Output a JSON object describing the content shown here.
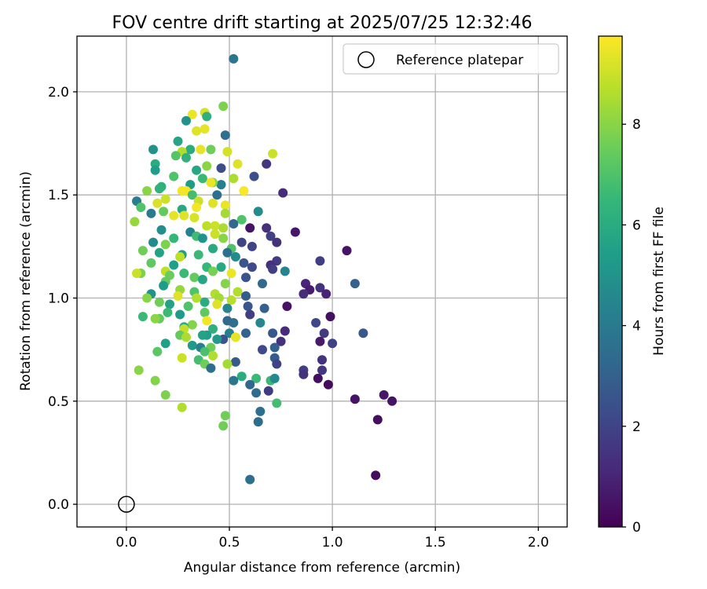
{
  "chart_data": {
    "type": "scatter",
    "title": "FOV centre drift starting at 2025/07/25 12:32:46",
    "xlabel": "Angular distance from reference (arcmin)",
    "ylabel": "Rotation from reference (arcmin)",
    "xlim": [
      -0.24,
      2.14
    ],
    "ylim": [
      -0.11,
      2.27
    ],
    "xticks": [
      0.0,
      0.5,
      1.0,
      1.5,
      2.0
    ],
    "xtick_labels": [
      "0.0",
      "0.5",
      "1.0",
      "1.5",
      "2.0"
    ],
    "yticks": [
      0.0,
      0.5,
      1.0,
      1.5,
      2.0
    ],
    "ytick_labels": [
      "0.0",
      "0.5",
      "1.0",
      "1.5",
      "2.0"
    ],
    "grid": true,
    "legend": {
      "placement": "top-right",
      "entries": [
        "Reference platepar"
      ]
    },
    "reference_point": {
      "x": 0.0,
      "y": 0.0
    },
    "colorbar": {
      "label": "Hours from first FF file",
      "colormap": "viridis",
      "range": [
        0,
        9.75
      ],
      "ticks": [
        0,
        2,
        4,
        6,
        8
      ],
      "tick_labels": [
        "0",
        "2",
        "4",
        "6",
        "8"
      ]
    },
    "colormap_stops": [
      "#440154",
      "#482878",
      "#3e4989",
      "#31688e",
      "#26828e",
      "#1f9e89",
      "#35b779",
      "#6ece58",
      "#b5de2b",
      "#fde725"
    ],
    "points": [
      [
        0.52,
        2.16,
        3.8
      ],
      [
        0.47,
        1.93,
        7.8
      ],
      [
        0.38,
        1.9,
        9.2
      ],
      [
        0.32,
        1.89,
        9.5
      ],
      [
        0.39,
        1.88,
        6.2
      ],
      [
        0.29,
        1.86,
        5.0
      ],
      [
        0.38,
        1.82,
        9.4
      ],
      [
        0.34,
        1.81,
        9.3
      ],
      [
        0.48,
        1.79,
        3.5
      ],
      [
        0.25,
        1.76,
        5.7
      ],
      [
        0.41,
        1.72,
        7.6
      ],
      [
        0.36,
        1.72,
        9.4
      ],
      [
        0.31,
        1.72,
        6.0
      ],
      [
        0.49,
        1.71,
        9.1
      ],
      [
        0.27,
        1.71,
        8.6
      ],
      [
        0.13,
        1.72,
        5.0
      ],
      [
        0.71,
        1.7,
        9.0
      ],
      [
        0.29,
        1.68,
        6.2
      ],
      [
        0.24,
        1.69,
        7.1
      ],
      [
        0.68,
        1.65,
        1.6
      ],
      [
        0.54,
        1.65,
        9.3
      ],
      [
        0.14,
        1.65,
        6.0
      ],
      [
        0.39,
        1.64,
        8.0
      ],
      [
        0.46,
        1.63,
        2.3
      ],
      [
        0.14,
        1.62,
        5.4
      ],
      [
        0.34,
        1.62,
        5.8
      ],
      [
        0.23,
        1.59,
        7.0
      ],
      [
        0.62,
        1.59,
        2.4
      ],
      [
        0.37,
        1.58,
        6.6
      ],
      [
        0.52,
        1.58,
        8.5
      ],
      [
        0.46,
        1.55,
        4.2
      ],
      [
        0.31,
        1.55,
        5.3
      ],
      [
        0.42,
        1.56,
        7.9
      ],
      [
        0.41,
        1.56,
        9.5
      ],
      [
        0.17,
        1.54,
        6.2
      ],
      [
        0.16,
        1.53,
        6.3
      ],
      [
        0.29,
        1.52,
        9.6
      ],
      [
        0.27,
        1.52,
        9.6
      ],
      [
        0.1,
        1.52,
        8.0
      ],
      [
        0.57,
        1.52,
        9.7
      ],
      [
        0.76,
        1.51,
        1.2
      ],
      [
        0.32,
        1.5,
        6.8
      ],
      [
        0.44,
        1.5,
        3.6
      ],
      [
        0.19,
        1.48,
        9.0
      ],
      [
        0.35,
        1.47,
        9.0
      ],
      [
        0.42,
        1.46,
        9.3
      ],
      [
        0.05,
        1.47,
        4.2
      ],
      [
        0.15,
        1.46,
        9.2
      ],
      [
        0.34,
        1.44,
        9.6
      ],
      [
        0.48,
        1.45,
        9.5
      ],
      [
        0.07,
        1.44,
        7.0
      ],
      [
        0.27,
        1.43,
        5.8
      ],
      [
        0.18,
        1.42,
        7.4
      ],
      [
        0.64,
        1.42,
        4.7
      ],
      [
        0.48,
        1.41,
        8.4
      ],
      [
        0.12,
        1.41,
        4.0
      ],
      [
        0.28,
        1.4,
        9.3
      ],
      [
        0.23,
        1.4,
        9.4
      ],
      [
        0.33,
        1.39,
        9.2
      ],
      [
        0.56,
        1.38,
        7.0
      ],
      [
        0.04,
        1.37,
        8.2
      ],
      [
        0.52,
        1.36,
        3.2
      ],
      [
        0.39,
        1.35,
        8.8
      ],
      [
        0.43,
        1.35,
        9.0
      ],
      [
        0.47,
        1.34,
        8.5
      ],
      [
        0.6,
        1.34,
        0.5
      ],
      [
        0.68,
        1.34,
        1.3
      ],
      [
        0.82,
        1.32,
        0.6
      ],
      [
        0.17,
        1.33,
        4.8
      ],
      [
        0.31,
        1.32,
        4.3
      ],
      [
        0.34,
        1.3,
        6.7
      ],
      [
        0.43,
        1.31,
        9.0
      ],
      [
        0.47,
        1.29,
        8.0
      ],
      [
        0.7,
        1.3,
        1.9
      ],
      [
        0.23,
        1.29,
        6.5
      ],
      [
        0.37,
        1.29,
        5.0
      ],
      [
        0.56,
        1.27,
        2.0
      ],
      [
        0.73,
        1.27,
        1.4
      ],
      [
        0.13,
        1.27,
        4.7
      ],
      [
        0.19,
        1.26,
        7.8
      ],
      [
        0.61,
        1.25,
        2.0
      ],
      [
        0.42,
        1.24,
        5.9
      ],
      [
        0.51,
        1.24,
        7.0
      ],
      [
        1.07,
        1.23,
        0.5
      ],
      [
        0.16,
        1.22,
        5.6
      ],
      [
        0.27,
        1.21,
        5.4
      ],
      [
        0.35,
        1.21,
        6.6
      ],
      [
        0.49,
        1.22,
        3.6
      ],
      [
        0.08,
        1.23,
        7.6
      ],
      [
        0.26,
        1.2,
        8.8
      ],
      [
        0.53,
        1.2,
        4.7
      ],
      [
        0.57,
        1.17,
        2.6
      ],
      [
        0.73,
        1.18,
        1.7
      ],
      [
        0.94,
        1.18,
        1.8
      ],
      [
        0.7,
        1.16,
        1.3
      ],
      [
        0.12,
        1.17,
        7.3
      ],
      [
        0.23,
        1.16,
        5.5
      ],
      [
        0.39,
        1.15,
        6.5
      ],
      [
        0.61,
        1.15,
        2.2
      ],
      [
        0.46,
        1.15,
        5.9
      ],
      [
        0.77,
        1.13,
        4.4
      ],
      [
        0.71,
        1.14,
        1.8
      ],
      [
        0.19,
        1.13,
        8.8
      ],
      [
        0.28,
        1.12,
        6.6
      ],
      [
        0.42,
        1.13,
        7.7
      ],
      [
        0.51,
        1.12,
        9.5
      ],
      [
        0.07,
        1.12,
        7.8
      ],
      [
        0.05,
        1.12,
        9.0
      ],
      [
        0.21,
        1.11,
        7.5
      ],
      [
        0.33,
        1.1,
        7.4
      ],
      [
        0.58,
        1.1,
        2.5
      ],
      [
        0.37,
        1.09,
        5.7
      ],
      [
        0.19,
        1.08,
        7.4
      ],
      [
        0.48,
        1.07,
        7.9
      ],
      [
        0.66,
        1.07,
        3.2
      ],
      [
        1.11,
        1.07,
        3.0
      ],
      [
        0.94,
        1.05,
        1.4
      ],
      [
        0.87,
        1.07,
        1.0
      ],
      [
        0.18,
        1.06,
        5.3
      ],
      [
        0.26,
        1.04,
        8.2
      ],
      [
        0.33,
        1.03,
        7.0
      ],
      [
        0.54,
        1.03,
        8.6
      ],
      [
        0.89,
        1.04,
        0.8
      ],
      [
        0.86,
        1.02,
        1.2
      ],
      [
        0.97,
        1.02,
        1.0
      ],
      [
        0.43,
        1.02,
        8.6
      ],
      [
        0.12,
        1.02,
        5.0
      ],
      [
        0.58,
        1.01,
        2.9
      ],
      [
        0.25,
        1.01,
        9.3
      ],
      [
        0.34,
        1.0,
        8.6
      ],
      [
        0.1,
        1.0,
        8.0
      ],
      [
        0.45,
        1.0,
        8.4
      ],
      [
        0.51,
        0.99,
        8.7
      ],
      [
        0.38,
        0.98,
        6.0
      ],
      [
        0.16,
        0.98,
        7.6
      ],
      [
        0.21,
        0.97,
        5.6
      ],
      [
        0.44,
        0.97,
        9.3
      ],
      [
        0.3,
        0.96,
        7.0
      ],
      [
        0.59,
        0.96,
        2.6
      ],
      [
        0.78,
        0.96,
        0.5
      ],
      [
        0.49,
        0.95,
        4.5
      ],
      [
        0.67,
        0.95,
        3.0
      ],
      [
        0.38,
        0.93,
        7.3
      ],
      [
        0.2,
        0.93,
        6.6
      ],
      [
        0.26,
        0.92,
        5.3
      ],
      [
        0.6,
        0.92,
        1.8
      ],
      [
        0.08,
        0.91,
        6.6
      ],
      [
        0.99,
        0.91,
        0.4
      ],
      [
        0.16,
        0.9,
        7.4
      ],
      [
        0.14,
        0.9,
        8.0
      ],
      [
        0.39,
        0.89,
        9.6
      ],
      [
        0.49,
        0.89,
        3.3
      ],
      [
        0.52,
        0.88,
        3.5
      ],
      [
        0.65,
        0.88,
        4.5
      ],
      [
        0.92,
        0.88,
        2.1
      ],
      [
        0.32,
        0.87,
        7.9
      ],
      [
        0.28,
        0.86,
        6.0
      ],
      [
        0.28,
        0.85,
        8.9
      ],
      [
        0.42,
        0.85,
        6.2
      ],
      [
        0.77,
        0.84,
        1.2
      ],
      [
        0.96,
        0.83,
        1.7
      ],
      [
        1.15,
        0.83,
        2.7
      ],
      [
        0.71,
        0.83,
        2.7
      ],
      [
        0.58,
        0.83,
        3.1
      ],
      [
        0.5,
        0.83,
        4.3
      ],
      [
        0.39,
        0.82,
        5.4
      ],
      [
        0.26,
        0.82,
        7.4
      ],
      [
        0.37,
        0.82,
        5.6
      ],
      [
        0.29,
        0.81,
        8.5
      ],
      [
        0.47,
        0.8,
        2.6
      ],
      [
        0.53,
        0.81,
        9.4
      ],
      [
        0.44,
        0.8,
        5.3
      ],
      [
        0.75,
        0.79,
        1.4
      ],
      [
        0.94,
        0.79,
        0.7
      ],
      [
        1.0,
        0.78,
        1.9
      ],
      [
        0.19,
        0.78,
        5.5
      ],
      [
        0.32,
        0.77,
        5.2
      ],
      [
        0.36,
        0.76,
        4.3
      ],
      [
        0.72,
        0.76,
        3.0
      ],
      [
        0.41,
        0.76,
        7.6
      ],
      [
        0.38,
        0.74,
        6.9
      ],
      [
        0.15,
        0.74,
        7.2
      ],
      [
        0.66,
        0.75,
        2.2
      ],
      [
        0.42,
        0.72,
        8.6
      ],
      [
        0.27,
        0.71,
        9.0
      ],
      [
        0.72,
        0.71,
        2.8
      ],
      [
        0.35,
        0.7,
        6.8
      ],
      [
        0.53,
        0.69,
        2.8
      ],
      [
        0.95,
        0.7,
        1.4
      ],
      [
        0.49,
        0.68,
        8.4
      ],
      [
        0.73,
        0.68,
        2.0
      ],
      [
        0.38,
        0.68,
        7.6
      ],
      [
        0.41,
        0.66,
        3.6
      ],
      [
        0.86,
        0.65,
        1.8
      ],
      [
        0.95,
        0.65,
        1.6
      ],
      [
        0.06,
        0.65,
        8.0
      ],
      [
        0.56,
        0.62,
        6.0
      ],
      [
        0.7,
        0.6,
        6.6
      ],
      [
        0.93,
        0.61,
        0.4
      ],
      [
        0.86,
        0.63,
        1.4
      ],
      [
        0.98,
        0.58,
        0.3
      ],
      [
        0.72,
        0.61,
        4.6
      ],
      [
        0.52,
        0.6,
        3.8
      ],
      [
        0.14,
        0.6,
        7.9
      ],
      [
        0.63,
        0.61,
        6.6
      ],
      [
        0.6,
        0.58,
        3.2
      ],
      [
        0.69,
        0.55,
        1.7
      ],
      [
        0.63,
        0.54,
        3.4
      ],
      [
        0.19,
        0.53,
        7.8
      ],
      [
        1.25,
        0.53,
        0.6
      ],
      [
        1.29,
        0.5,
        0.5
      ],
      [
        1.11,
        0.51,
        0.5
      ],
      [
        0.73,
        0.49,
        6.8
      ],
      [
        0.27,
        0.47,
        8.6
      ],
      [
        0.65,
        0.45,
        3.5
      ],
      [
        0.48,
        0.43,
        7.6
      ],
      [
        1.22,
        0.41,
        0.4
      ],
      [
        0.64,
        0.4,
        3.4
      ],
      [
        0.47,
        0.38,
        7.6
      ],
      [
        1.21,
        0.14,
        0.3
      ],
      [
        0.6,
        0.12,
        3.6
      ]
    ]
  }
}
